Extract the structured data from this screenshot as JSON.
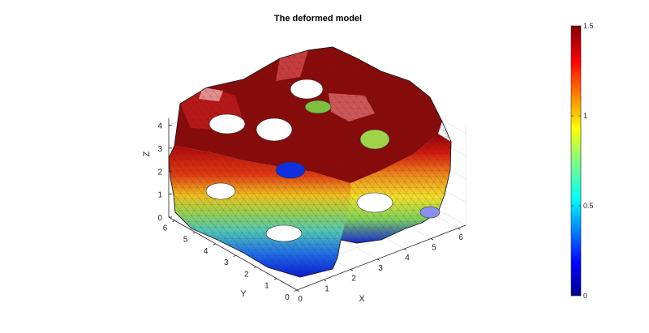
{
  "chart_data": {
    "type": "surface-3d",
    "title": "The deformed model",
    "xlabel": "X",
    "ylabel": "Y",
    "zlabel": "Z",
    "x_ticks": [
      "0",
      "1",
      "2",
      "3",
      "4",
      "5",
      "6"
    ],
    "y_ticks": [
      "0",
      "1",
      "2",
      "3",
      "4",
      "5",
      "6"
    ],
    "z_ticks": [
      "0",
      "1",
      "2",
      "3",
      "4"
    ],
    "xlim": [
      0,
      6.3
    ],
    "ylim": [
      0,
      6.3
    ],
    "zlim": [
      0,
      4.3
    ],
    "colorbar": {
      "colormap": "jet",
      "range": [
        0,
        1.5
      ],
      "tick_labels": [
        "0",
        "0.5",
        "1",
        "1.5"
      ],
      "tick_values": [
        0,
        0.5,
        1,
        1.5
      ]
    },
    "grid": true,
    "surface_description": "Gyroid-like porous lattice block, colored by displacement magnitude from low (bottom) to high (top)"
  }
}
